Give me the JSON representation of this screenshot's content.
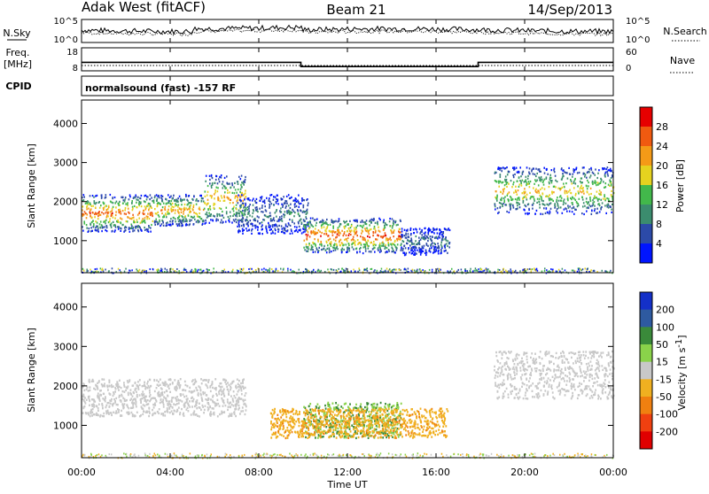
{
  "header": {
    "station": "Adak West (fitACF)",
    "beam": "Beam 21",
    "date": "14/Sep/2013"
  },
  "noise_panel": {
    "left_label": "N.Sky",
    "right_label": "N.Search",
    "ticks_left": [
      "10^5",
      "10^0"
    ],
    "ticks_right": [
      "10^5",
      "10^0"
    ]
  },
  "freq_panel": {
    "left_label_line1": "Freq.",
    "left_label_line2": "[MHz]",
    "ticks_left": [
      "18",
      "8"
    ],
    "ticks_right": [
      "60",
      "0"
    ],
    "right_label": "Nave"
  },
  "cpid_panel": {
    "left_label": "CPID",
    "mode_text": "normalsound (fast) -157 RF"
  },
  "power_panel": {
    "ylabel": "Slant Range [km]",
    "yticks": [
      "1000",
      "2000",
      "3000",
      "4000"
    ],
    "colorbar_label": "Power [dB]",
    "colorbar_ticks": [
      "4",
      "8",
      "12",
      "16",
      "20",
      "24",
      "28"
    ],
    "colorbar_colors": [
      "#0015ff",
      "#2c4aa8",
      "#3b8c6e",
      "#42b84b",
      "#e5d21f",
      "#f49a17",
      "#f05a10",
      "#e60000"
    ]
  },
  "velocity_panel": {
    "ylabel": "Slant Range [km]",
    "yticks": [
      "1000",
      "2000",
      "3000",
      "4000"
    ],
    "colorbar_label": "Velocity [m s",
    "colorbar_label_sup": "-1",
    "colorbar_label_end": "]",
    "colorbar_ticks": [
      "200",
      "100",
      "50",
      "15",
      "-15",
      "-50",
      "-100",
      "-200"
    ],
    "colorbar_colors": [
      "#1430c8",
      "#2e5aa0",
      "#3a8a3a",
      "#8ad24a",
      "#c8c8c8",
      "#f0b020",
      "#f08010",
      "#f04010",
      "#e00000"
    ]
  },
  "xaxis": {
    "label": "Time UT",
    "ticks": [
      "00:00",
      "04:00",
      "08:00",
      "12:00",
      "16:00",
      "20:00",
      "00:00"
    ]
  },
  "chart_data": {
    "type": "heatmap",
    "title": "Adak West (fitACF)",
    "xlabel": "Time UT",
    "ylabel": "Slant Range [km]",
    "xlim_hours": [
      0,
      24
    ],
    "ylim_km": [
      180,
      4600
    ],
    "power_clim_db": [
      0,
      30
    ],
    "velocity_clim_ms": [
      -250,
      250
    ],
    "frequency_steps": [
      {
        "start_h": 0,
        "end_h": 9.9,
        "freq_mhz": 12
      },
      {
        "start_h": 9.9,
        "end_h": 17.9,
        "freq_mhz": 10
      },
      {
        "start_h": 17.9,
        "end_h": 24,
        "freq_mhz": 12
      }
    ],
    "power_regions": [
      {
        "t0": 0.0,
        "t1": 3.2,
        "r0": 1250,
        "r1": 2200,
        "peak_db": 26
      },
      {
        "t0": 3.2,
        "t1": 5.5,
        "r0": 1400,
        "r1": 2200,
        "peak_db": 22
      },
      {
        "t0": 5.5,
        "t1": 7.4,
        "r0": 1450,
        "r1": 2700,
        "peak_db": 22
      },
      {
        "t0": 7.0,
        "t1": 10.2,
        "r0": 1200,
        "r1": 2200,
        "peak_db": 10
      },
      {
        "t0": 10.0,
        "t1": 14.4,
        "r0": 700,
        "r1": 1600,
        "peak_db": 28
      },
      {
        "t0": 14.4,
        "t1": 16.6,
        "r0": 650,
        "r1": 1350,
        "peak_db": 8
      },
      {
        "t0": 18.6,
        "t1": 24.0,
        "r0": 1700,
        "r1": 2900,
        "peak_db": 20
      }
    ],
    "velocity_regions": [
      {
        "t0": 0.0,
        "t1": 7.4,
        "r0": 1250,
        "r1": 2200,
        "vel_ms": 0
      },
      {
        "t0": 10.0,
        "t1": 14.4,
        "r0": 700,
        "r1": 1600,
        "vel_ms": 30
      },
      {
        "t0": 8.5,
        "t1": 16.5,
        "r0": 700,
        "r1": 1450,
        "vel_ms": -40
      },
      {
        "t0": 18.6,
        "t1": 24.0,
        "r0": 1700,
        "r1": 2900,
        "vel_ms": 0
      }
    ]
  }
}
